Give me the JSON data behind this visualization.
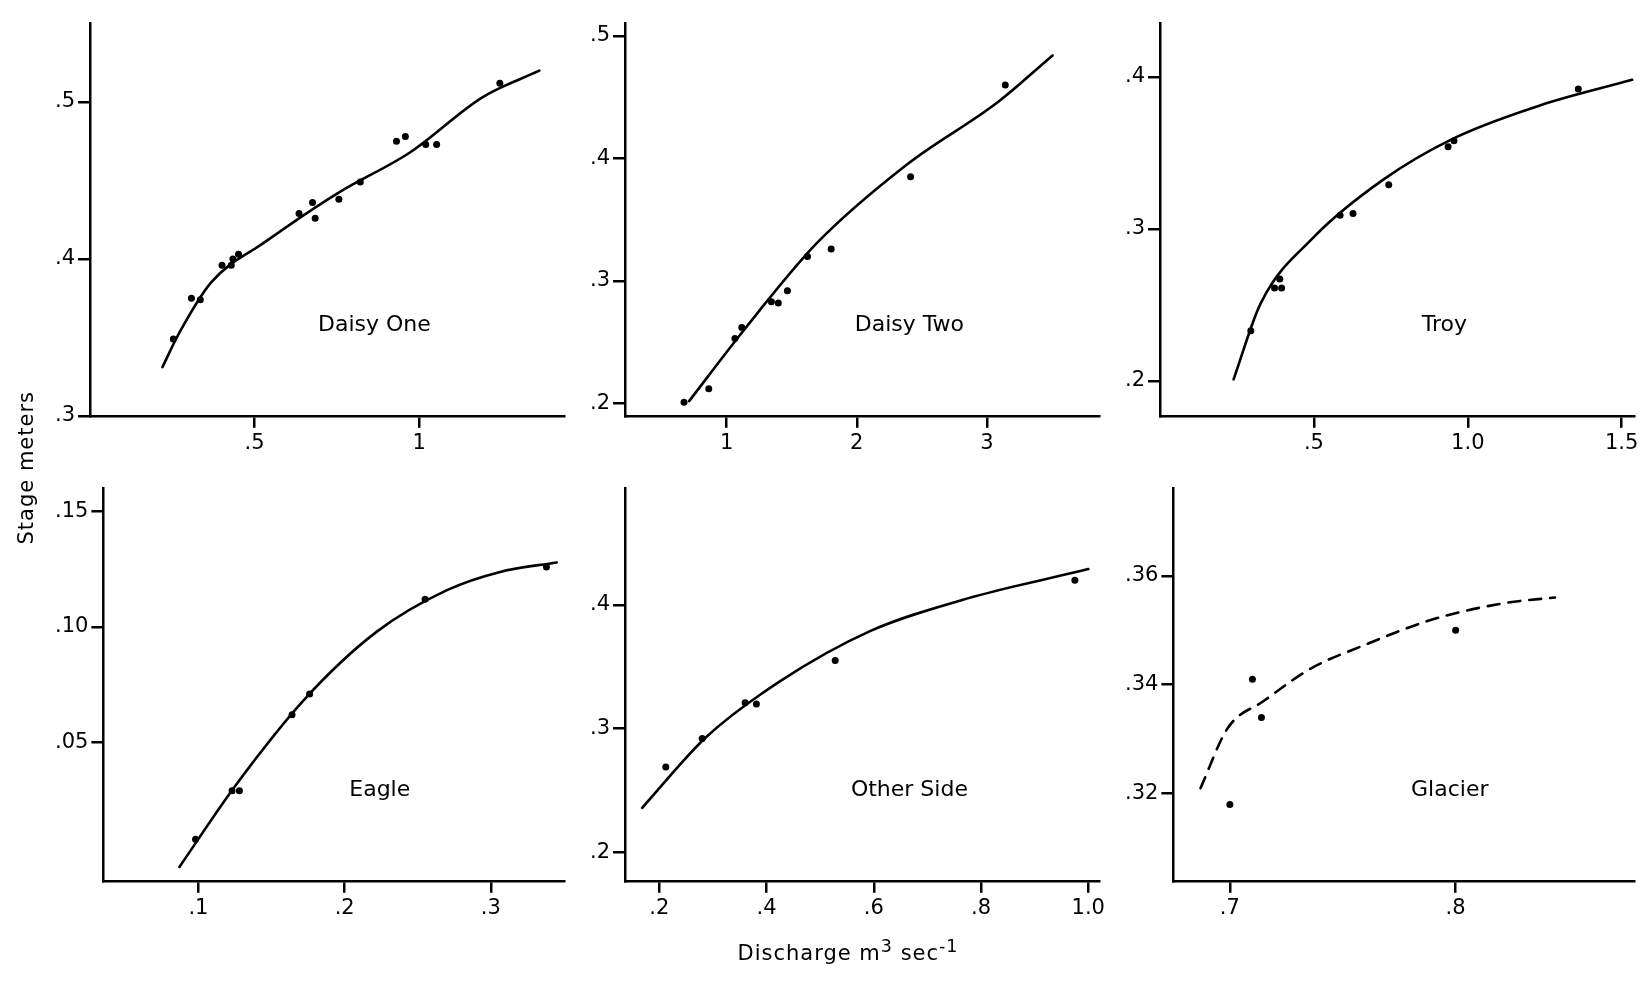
{
  "chart_data": [
    {
      "type": "scatter",
      "title": "Daisy One",
      "ylabel": "Stage meters",
      "xlim": [
        0,
        1.44
      ],
      "ylim": [
        0.3,
        0.55
      ],
      "xticks": [
        {
          "value": 0.5,
          "label": ".5"
        },
        1
      ],
      "yticks": [
        {
          "value": 0.3,
          "label": ".3"
        },
        {
          "value": 0.4,
          "label": ".4"
        },
        {
          "value": 0.5,
          "label": ".5"
        }
      ],
      "series": [
        {
          "type": "scatter",
          "marker": "circle",
          "color": "#000000",
          "x": [
            0.253,
            0.308,
            0.335,
            0.401,
            0.429,
            0.434,
            0.451,
            0.635,
            0.676,
            0.684,
            0.756,
            0.821,
            0.931,
            0.958,
            1.02,
            1.053,
            1.245
          ],
          "values": [
            0.349,
            0.375,
            0.374,
            0.396,
            0.396,
            0.4,
            0.403,
            0.429,
            0.436,
            0.426,
            0.438,
            0.449,
            0.475,
            0.478,
            0.473,
            0.473,
            0.512
          ]
        },
        {
          "type": "line",
          "color": "#000000",
          "x": [
            0.22,
            0.269,
            0.368,
            0.533,
            0.753,
            0.973,
            1.192,
            1.365
          ],
          "values": [
            0.331,
            0.352,
            0.385,
            0.411,
            0.442,
            0.468,
            0.503,
            0.52
          ]
        }
      ]
    },
    {
      "type": "scatter",
      "title": "Daisy Two",
      "xlim": [
        0.22,
        3.86
      ],
      "ylim": [
        0.19,
        0.51
      ],
      "xticks": [
        1,
        2,
        3
      ],
      "yticks": [
        {
          "value": 0.2,
          "label": ".2"
        },
        {
          "value": 0.3,
          "label": ".3"
        },
        {
          "value": 0.4,
          "label": ".4"
        },
        {
          "value": 0.5,
          "label": ".5"
        }
      ],
      "series": [
        {
          "type": "scatter",
          "marker": "circle",
          "color": "#000000",
          "x": [
            0.673,
            0.863,
            1.064,
            1.117,
            1.344,
            1.397,
            1.467,
            1.621,
            1.803,
            2.413,
            3.14
          ],
          "values": [
            0.201,
            0.212,
            0.253,
            0.262,
            0.283,
            0.282,
            0.292,
            0.32,
            0.326,
            0.385,
            0.46
          ]
        },
        {
          "type": "line",
          "color": "#000000",
          "x": [
            0.712,
            1.126,
            1.685,
            2.385,
            3.084,
            3.503
          ],
          "values": [
            0.202,
            0.259,
            0.33,
            0.395,
            0.446,
            0.484
          ]
        }
      ]
    },
    {
      "type": "scatter",
      "title": "Troy",
      "xlim": [
        0,
        1.54
      ],
      "ylim": [
        0.177,
        0.435
      ],
      "xticks": [
        {
          "value": 0.5,
          "label": ".5"
        },
        {
          "value": 1,
          "label": "1.0"
        },
        {
          "value": 1.5,
          "label": "1.5"
        }
      ],
      "yticks": [
        {
          "value": 0.2,
          "label": ".2"
        },
        {
          "value": 0.3,
          "label": ".3"
        },
        {
          "value": 0.4,
          "label": ".4"
        }
      ],
      "series": [
        {
          "type": "scatter",
          "marker": "circle",
          "color": "#000000",
          "x": [
            0.295,
            0.372,
            0.389,
            0.395,
            0.585,
            0.627,
            0.743,
            0.936,
            0.955,
            1.359
          ],
          "values": [
            0.233,
            0.261,
            0.267,
            0.261,
            0.309,
            0.31,
            0.329,
            0.354,
            0.358,
            0.392
          ]
        },
        {
          "type": "line",
          "color": "#000000",
          "x": [
            0.239,
            0.327,
            0.497,
            0.723,
            0.949,
            1.232,
            1.534
          ],
          "values": [
            0.201,
            0.251,
            0.294,
            0.332,
            0.359,
            0.381,
            0.398
          ]
        }
      ]
    },
    {
      "type": "scatter",
      "title": "Eagle",
      "xlim": [
        0.035,
        0.35
      ],
      "ylim": [
        -0.01,
        0.16
      ],
      "xticks": [
        {
          "value": 0.1,
          "label": ".1"
        },
        {
          "value": 0.2,
          "label": ".2"
        },
        {
          "value": 0.3,
          "label": ".3"
        }
      ],
      "yticks": [
        {
          "value": 0.05,
          "label": ".05"
        },
        {
          "value": 0.1,
          "label": ".10"
        },
        {
          "value": 0.15,
          "label": ".15"
        }
      ],
      "series": [
        {
          "type": "scatter",
          "marker": "circle",
          "color": "#000000",
          "x": [
            0.098,
            0.123,
            0.128,
            0.164,
            0.176,
            0.255,
            0.338
          ],
          "values": [
            0.008,
            0.029,
            0.029,
            0.062,
            0.071,
            0.112,
            0.126
          ]
        },
        {
          "type": "line",
          "color": "#000000",
          "x": [
            0.087,
            0.125,
            0.173,
            0.222,
            0.27,
            0.307,
            0.345
          ],
          "values": [
            -0.004,
            0.031,
            0.069,
            0.098,
            0.116,
            0.124,
            0.128
          ]
        }
      ]
    },
    {
      "type": "scatter",
      "title": "Other Side",
      "xlabel": "Discharge m$^{3}$ sec$^{-1}$",
      "xlim": [
        0.136,
        1.02
      ],
      "ylim": [
        0.177,
        0.494
      ],
      "xticks": [
        {
          "value": 0.2,
          "label": ".2"
        },
        {
          "value": 0.4,
          "label": ".4"
        },
        {
          "value": 0.6,
          "label": ".6"
        },
        {
          "value": 0.8,
          "label": ".8"
        },
        {
          "value": 1,
          "label": "1.0"
        }
      ],
      "yticks": [
        {
          "value": 0.2,
          "label": ".2"
        },
        {
          "value": 0.3,
          "label": ".3"
        },
        {
          "value": 0.4,
          "label": ".4"
        }
      ],
      "series": [
        {
          "type": "scatter",
          "marker": "circle",
          "color": "#000000",
          "x": [
            0.212,
            0.28,
            0.36,
            0.381,
            0.528,
            0.975
          ],
          "values": [
            0.269,
            0.292,
            0.321,
            0.32,
            0.355,
            0.42
          ]
        },
        {
          "type": "line",
          "color": "#000000",
          "x": [
            0.168,
            0.287,
            0.424,
            0.594,
            0.765,
            1.0
          ],
          "values": [
            0.236,
            0.293,
            0.338,
            0.379,
            0.404,
            0.429
          ]
        }
      ]
    },
    {
      "type": "scatter",
      "title": "Glacier",
      "xlim": [
        0.675,
        0.879
      ],
      "ylim": [
        0.304,
        0.376
      ],
      "xticks": [
        {
          "value": 0.7,
          "label": ".7"
        },
        {
          "value": 0.8,
          "label": ".8"
        }
      ],
      "yticks": [
        {
          "value": 0.32,
          "label": ".32"
        },
        {
          "value": 0.34,
          "label": ".34"
        },
        {
          "value": 0.36,
          "label": ".36"
        }
      ],
      "series": [
        {
          "type": "scatter",
          "marker": "circle",
          "color": "#000000",
          "x": [
            0.7,
            0.71,
            0.714,
            0.8
          ],
          "values": [
            0.318,
            0.341,
            0.334,
            0.35
          ]
        },
        {
          "type": "line",
          "color": "#000000",
          "line_style": "dashed",
          "x": [
            0.687,
            0.699,
            0.715,
            0.736,
            0.758,
            0.79,
            0.822,
            0.844
          ],
          "values": [
            0.321,
            0.332,
            0.337,
            0.343,
            0.347,
            0.352,
            0.355,
            0.356
          ]
        }
      ]
    }
  ]
}
